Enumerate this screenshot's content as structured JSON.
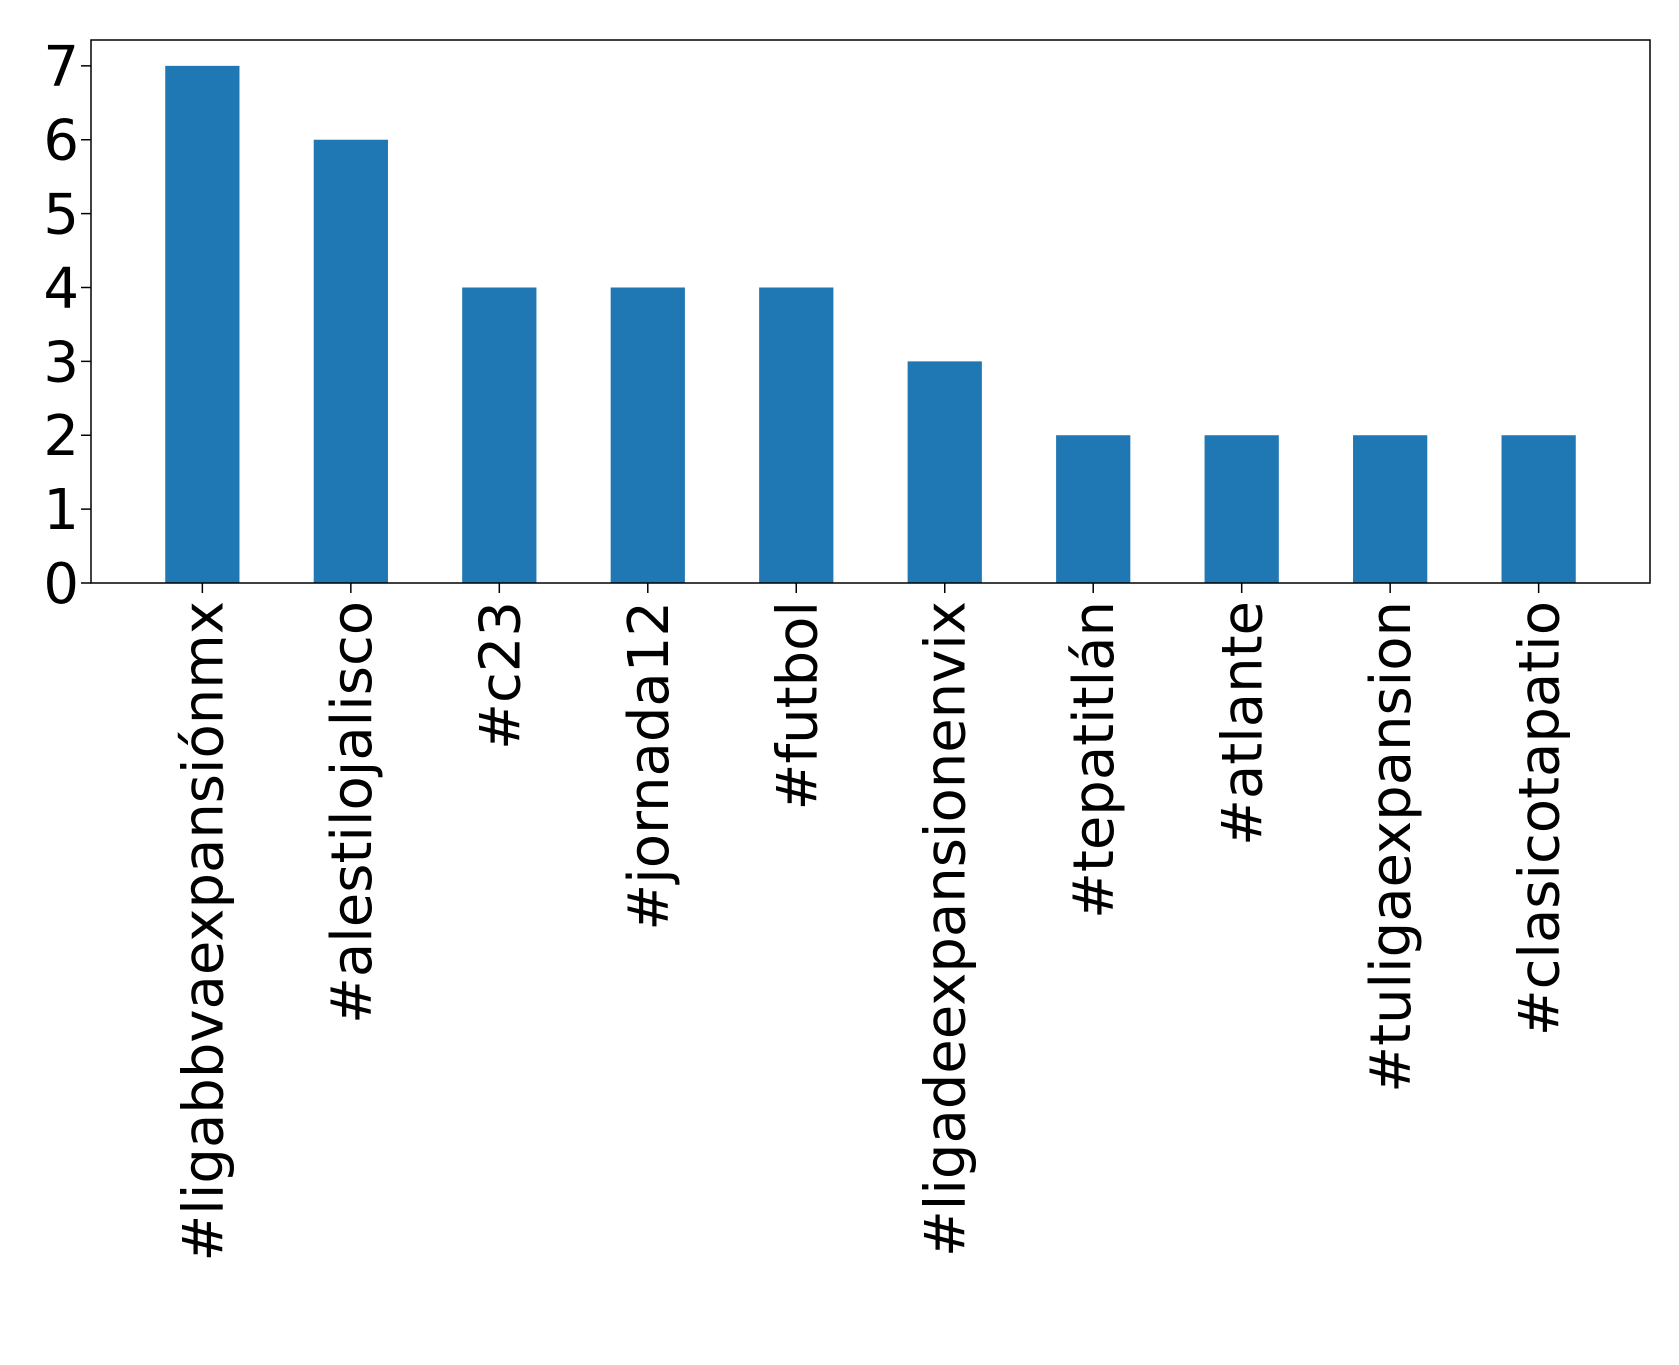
{
  "chart_data": {
    "type": "bar",
    "categories": [
      "#ligabbvaexpansiónmx",
      "#alestilojalisco",
      "#c23",
      "#jornada12",
      "#futbol",
      "#ligadeexpansionenvix",
      "#tepatitlán",
      "#atlante",
      "#tuligaexpansion",
      "#clasicotapatio"
    ],
    "values": [
      7,
      6,
      4,
      4,
      4,
      3,
      2,
      2,
      2,
      2
    ],
    "yticks": [
      "0",
      "1",
      "2",
      "3",
      "4",
      "5",
      "6",
      "7"
    ],
    "ylim": [
      0,
      7.35
    ],
    "title": "",
    "xlabel": "",
    "ylabel": "",
    "grid": false,
    "legend": "none",
    "bar_color": "#1f77b4"
  }
}
